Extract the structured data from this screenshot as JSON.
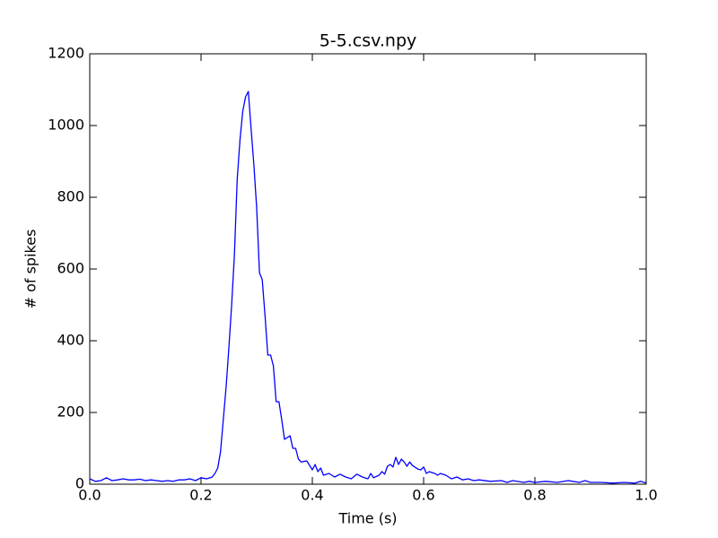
{
  "chart_data": {
    "type": "line",
    "title": "5-5.csv.npy",
    "x_label": "Time (s)",
    "y_label": "# of spikes",
    "x": [
      0.0,
      0.01,
      0.02,
      0.03,
      0.04,
      0.05,
      0.06,
      0.07,
      0.08,
      0.09,
      0.1,
      0.11,
      0.12,
      0.13,
      0.14,
      0.15,
      0.16,
      0.17,
      0.18,
      0.19,
      0.2,
      0.21,
      0.22,
      0.225,
      0.23,
      0.235,
      0.24,
      0.245,
      0.25,
      0.255,
      0.26,
      0.265,
      0.27,
      0.275,
      0.28,
      0.285,
      0.29,
      0.295,
      0.3,
      0.305,
      0.31,
      0.315,
      0.32,
      0.325,
      0.33,
      0.335,
      0.34,
      0.345,
      0.35,
      0.355,
      0.36,
      0.365,
      0.37,
      0.375,
      0.38,
      0.39,
      0.4,
      0.405,
      0.41,
      0.415,
      0.42,
      0.43,
      0.44,
      0.45,
      0.46,
      0.47,
      0.48,
      0.49,
      0.5,
      0.505,
      0.51,
      0.52,
      0.525,
      0.53,
      0.535,
      0.54,
      0.545,
      0.55,
      0.555,
      0.56,
      0.565,
      0.57,
      0.575,
      0.58,
      0.59,
      0.595,
      0.6,
      0.605,
      0.61,
      0.62,
      0.625,
      0.63,
      0.64,
      0.65,
      0.66,
      0.67,
      0.68,
      0.69,
      0.7,
      0.72,
      0.74,
      0.75,
      0.76,
      0.78,
      0.79,
      0.8,
      0.82,
      0.84,
      0.86,
      0.88,
      0.89,
      0.9,
      0.92,
      0.94,
      0.96,
      0.98,
      0.99,
      1.0
    ],
    "values": [
      15,
      8,
      10,
      18,
      10,
      12,
      15,
      12,
      12,
      14,
      10,
      12,
      10,
      8,
      10,
      8,
      12,
      12,
      15,
      10,
      18,
      15,
      20,
      30,
      45,
      90,
      180,
      270,
      380,
      500,
      640,
      850,
      960,
      1040,
      1080,
      1095,
      990,
      890,
      770,
      590,
      570,
      470,
      360,
      360,
      330,
      230,
      230,
      180,
      125,
      130,
      135,
      100,
      100,
      70,
      62,
      65,
      40,
      55,
      35,
      45,
      25,
      30,
      20,
      28,
      20,
      15,
      28,
      20,
      15,
      30,
      18,
      25,
      35,
      28,
      50,
      55,
      48,
      75,
      55,
      70,
      62,
      50,
      62,
      52,
      42,
      40,
      48,
      30,
      35,
      30,
      25,
      30,
      25,
      15,
      20,
      12,
      15,
      10,
      12,
      8,
      10,
      5,
      10,
      5,
      8,
      5,
      8,
      5,
      10,
      5,
      10,
      5,
      5,
      3,
      5,
      3,
      8,
      3
    ],
    "color": "#0000ff",
    "xlim": [
      0.0,
      1.0
    ],
    "xticks": [
      {
        "value": 0.0,
        "label": "0.0"
      },
      0.2,
      0.4,
      0.6,
      0.8,
      {
        "value": 1.0,
        "label": "1.0"
      }
    ],
    "ylim": [
      0,
      1200
    ],
    "yticks": [
      0,
      200,
      400,
      600,
      800,
      1000,
      1200
    ]
  }
}
